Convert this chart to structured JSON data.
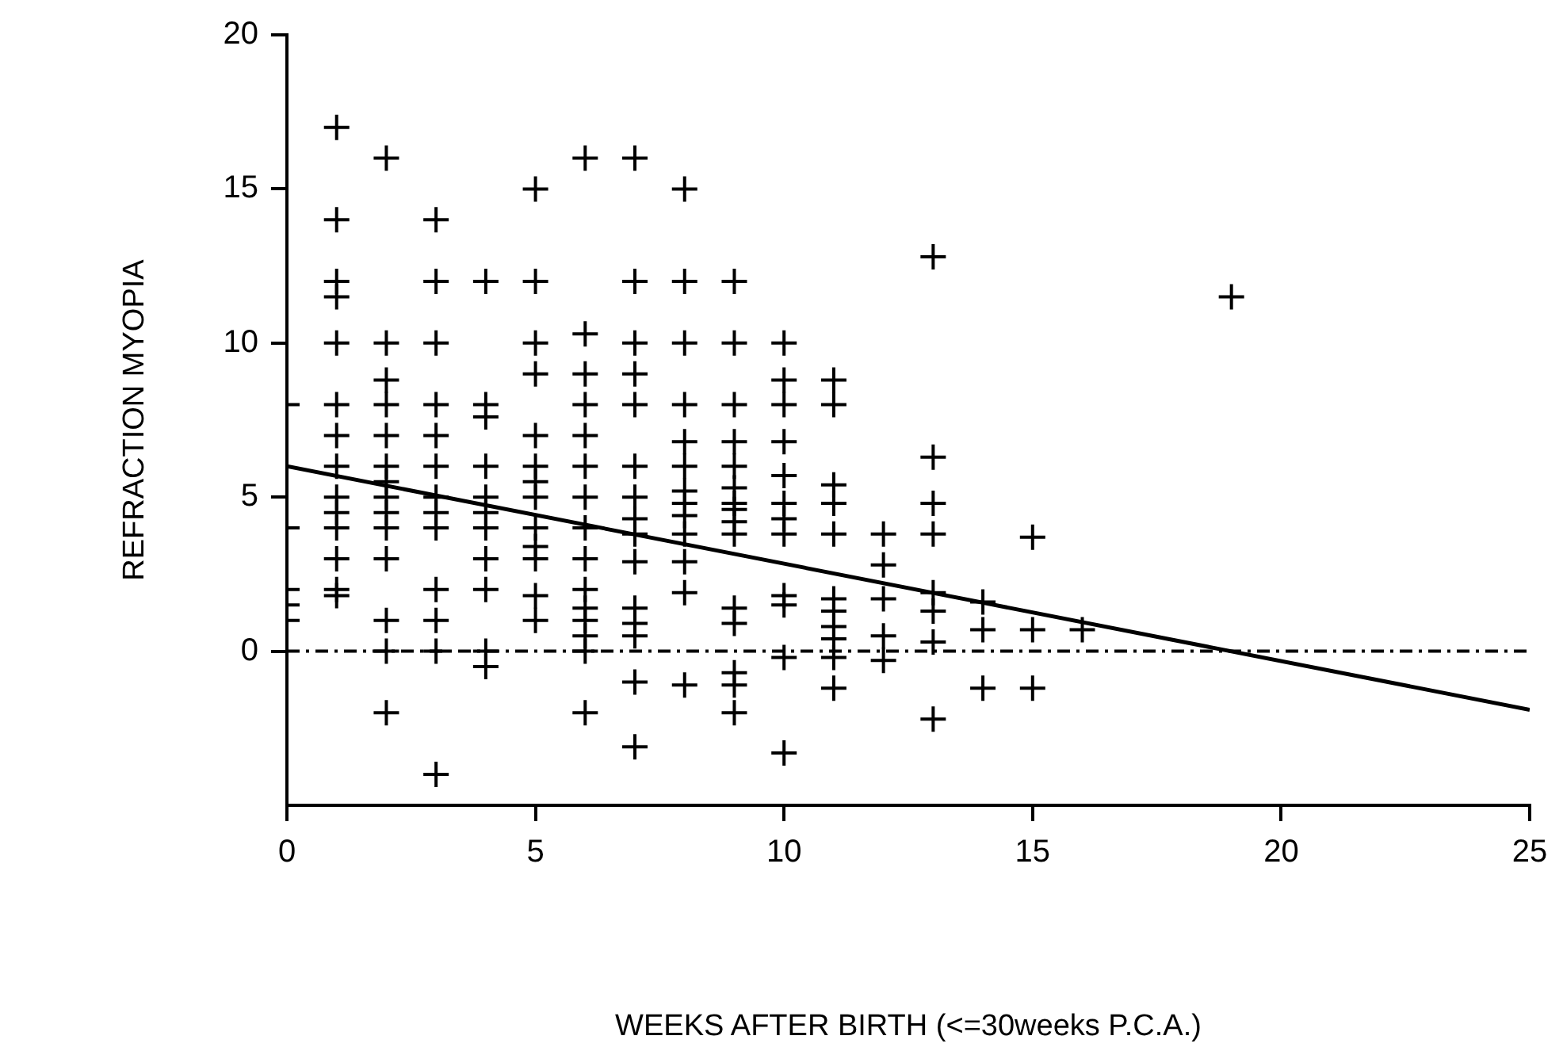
{
  "chart_data": {
    "type": "scatter",
    "xlabel": "WEEKS AFTER BIRTH (<=30weeks P.C.A.)",
    "ylabel": "REFRACTION MYOPIA",
    "xlim": [
      0,
      25
    ],
    "xticks": [
      0,
      5,
      10,
      15,
      20,
      25
    ],
    "ylim": [
      -5,
      20
    ],
    "yticks": [
      0,
      5,
      10,
      15,
      20
    ],
    "grid": false,
    "legend": false,
    "marker": "cross",
    "ref_lines": [
      {
        "axis": "y",
        "value": 0,
        "label": null,
        "color": "#000000",
        "line_style": "dashed"
      }
    ],
    "series": [
      {
        "type": "scatter",
        "color": "#000000",
        "x": [
          0,
          0,
          0,
          0,
          0,
          1,
          1,
          1,
          1,
          1,
          1,
          1,
          1,
          1,
          1,
          1,
          1,
          1,
          1,
          2,
          2,
          2,
          2,
          2,
          2,
          2,
          2,
          2,
          2,
          2,
          2,
          2,
          2,
          3,
          3,
          3,
          3,
          3,
          3,
          3,
          3,
          3,
          3,
          3,
          3,
          3,
          4,
          4,
          4,
          4,
          4,
          4,
          4,
          4,
          4,
          4,
          4,
          5,
          5,
          5,
          5,
          5,
          5,
          5,
          5,
          5,
          5,
          5,
          5,
          5,
          6,
          6,
          6,
          6,
          6,
          6,
          6,
          6,
          6,
          6,
          6,
          6,
          6,
          6,
          6,
          7,
          7,
          7,
          7,
          7,
          7,
          7,
          7,
          7,
          7,
          7,
          7,
          7,
          7,
          7,
          8,
          8,
          8,
          8,
          8,
          8,
          8,
          8,
          8,
          8,
          8,
          8,
          8,
          9,
          9,
          9,
          9,
          9,
          9,
          9,
          9,
          9,
          9,
          9,
          9,
          9,
          9,
          9,
          10,
          10,
          10,
          10,
          10,
          10,
          10,
          10,
          10,
          10,
          10,
          10,
          11,
          11,
          11,
          11,
          11,
          11,
          11,
          11,
          11,
          11,
          11,
          12,
          12,
          12,
          12,
          12,
          13,
          13,
          13,
          13,
          13,
          13,
          13,
          13,
          14,
          14,
          14,
          15,
          15,
          15,
          16,
          19
        ],
        "values": [
          8,
          4,
          2,
          1.5,
          1,
          17,
          14,
          12,
          11.5,
          10,
          8,
          7,
          6,
          5,
          4.5,
          4,
          3,
          2,
          1.8,
          16,
          10,
          8.8,
          8,
          7,
          6,
          5.5,
          5,
          4.5,
          4,
          3,
          1,
          0,
          -2,
          14,
          12,
          10,
          8,
          7,
          6,
          5,
          4.5,
          4,
          2,
          1,
          0,
          -4,
          12,
          8,
          7.6,
          6,
          5,
          4.5,
          4,
          3,
          2,
          0,
          -0.5,
          15,
          12,
          10,
          9,
          7,
          6,
          5.5,
          5,
          4,
          3.4,
          3,
          1.8,
          1,
          16,
          10.3,
          9,
          8,
          7,
          6,
          5,
          4,
          3,
          2,
          1.4,
          1,
          0.5,
          0,
          -2,
          16,
          12,
          10,
          9,
          8,
          6,
          5,
          4.3,
          3.8,
          2.9,
          1.4,
          0.9,
          0.5,
          -1,
          -3.1,
          15,
          12,
          10,
          8,
          6.8,
          6,
          5.2,
          4.8,
          4.4,
          3.8,
          2.9,
          1.9,
          -1.1,
          12,
          10,
          8,
          6.8,
          6,
          5.3,
          4.8,
          4.6,
          4.2,
          3.8,
          1.4,
          0.9,
          -0.7,
          -1.1,
          -2,
          10,
          8.8,
          8,
          6.8,
          5.7,
          4.8,
          4.3,
          3.8,
          1.8,
          1.5,
          -0.2,
          -3.3,
          8.8,
          8,
          5.4,
          4.8,
          3.8,
          1.7,
          1.3,
          0.8,
          0.4,
          -0.2,
          -1.2,
          3.8,
          2.8,
          1.7,
          0.5,
          -0.3,
          12.8,
          6.3,
          4.8,
          3.8,
          1.9,
          1.3,
          0.3,
          -2.2,
          1.6,
          0.7,
          -1.2,
          3.7,
          0.7,
          -1.2,
          0.7,
          11.5
        ]
      },
      {
        "type": "line",
        "color": "#000000",
        "x": [
          0,
          25
        ],
        "values": [
          6,
          -1.9
        ],
        "marker": "none",
        "line_style": "solid"
      }
    ]
  }
}
